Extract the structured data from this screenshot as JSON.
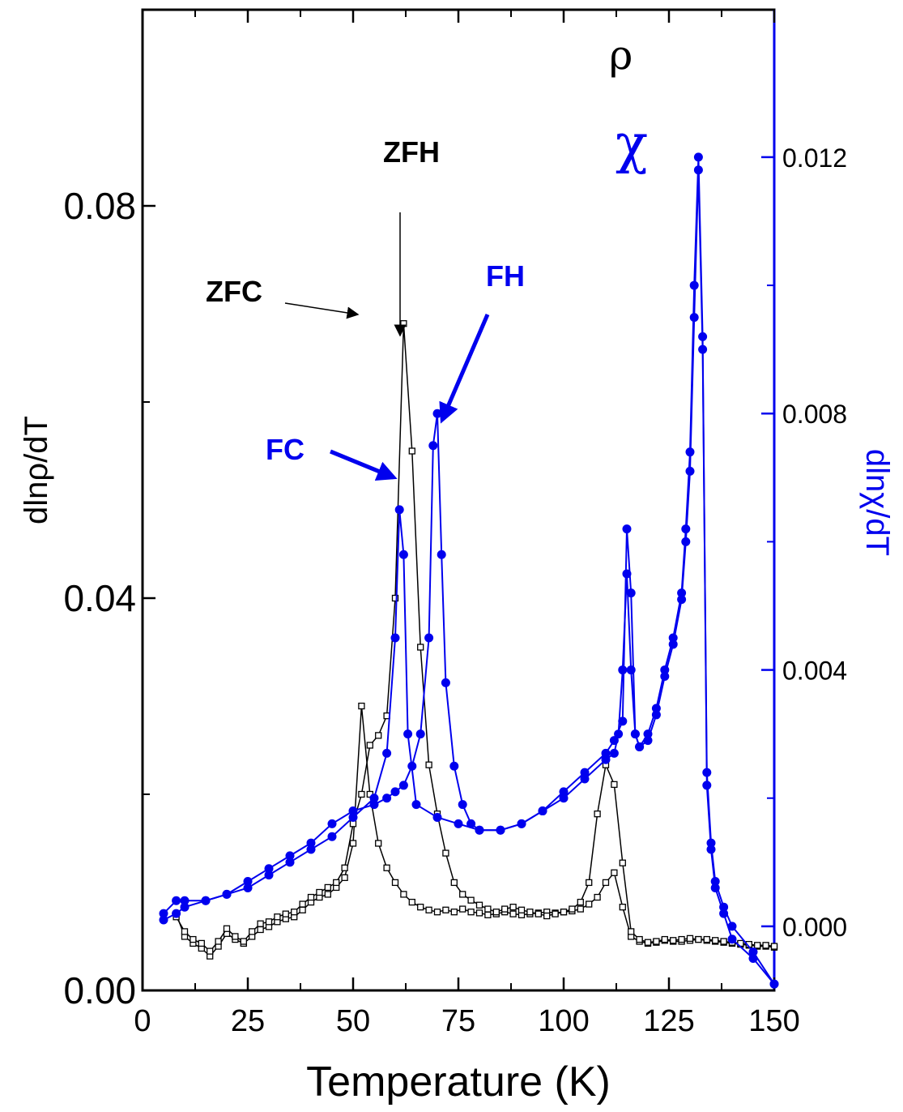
{
  "chart_data": {
    "type": "line",
    "xlabel": "Temperature (K)",
    "ylabel_left": "dlnρ/dT",
    "ylabel_right": "dlnχ/dT",
    "xlim": [
      0,
      150
    ],
    "ylim_left": [
      0,
      0.1
    ],
    "ylim_right": [
      -0.001,
      0.0143
    ],
    "x_ticks": [
      0,
      25,
      50,
      75,
      100,
      125,
      150
    ],
    "x_tick_labels": [
      "0",
      "25",
      "50",
      "75",
      "100",
      "125",
      "150"
    ],
    "y_left_ticks": [
      0,
      0.04,
      0.08
    ],
    "y_left_tick_labels": [
      "0.00",
      "0.04",
      "0.08"
    ],
    "y_right_ticks": [
      0.0,
      0.004,
      0.008,
      0.012
    ],
    "y_right_tick_labels": [
      "0.000",
      "0.004",
      "0.008",
      "0.012"
    ],
    "legend": {
      "rho": "ρ",
      "chi": "χ"
    },
    "annotations": {
      "zfc": "ZFC",
      "zfh": "ZFH",
      "fc": "FC",
      "fh": "FH"
    },
    "colors": {
      "rho": "#000000",
      "chi": "#0000ee"
    },
    "series": [
      {
        "axis": "left",
        "marker": "open-square",
        "x": [
          8,
          10,
          12,
          14,
          16,
          18,
          20,
          22,
          24,
          26,
          28,
          30,
          32,
          34,
          36,
          38,
          40,
          42,
          44,
          46,
          48,
          50,
          52,
          54,
          56,
          58,
          60,
          62,
          64,
          66,
          68,
          70,
          72,
          74,
          76,
          78,
          80,
          82,
          84,
          86,
          88,
          90,
          92,
          94,
          96,
          98,
          100,
          102,
          104,
          106,
          108,
          110,
          112,
          114,
          116,
          118,
          120,
          122,
          124,
          126,
          128,
          130,
          132,
          134,
          136,
          138,
          140,
          142,
          144,
          146,
          148,
          150
        ],
        "y": [
          0.0078,
          0.0055,
          0.0048,
          0.0043,
          0.0035,
          0.0045,
          0.0058,
          0.0052,
          0.0048,
          0.0055,
          0.0062,
          0.0065,
          0.007,
          0.0073,
          0.0075,
          0.0082,
          0.009,
          0.0095,
          0.0098,
          0.0105,
          0.0115,
          0.015,
          0.029,
          0.02,
          0.015,
          0.0125,
          0.011,
          0.0098,
          0.009,
          0.0085,
          0.0082,
          0.008,
          0.0082,
          0.008,
          0.0083,
          0.008,
          0.0079,
          0.0077,
          0.0078,
          0.008,
          0.0078,
          0.0077,
          0.0078,
          0.0079,
          0.008,
          0.0079,
          0.008,
          0.0081,
          0.0083,
          0.0088,
          0.0095,
          0.011,
          0.012,
          0.0085,
          0.0055,
          0.005,
          0.0048,
          0.0049,
          0.0051,
          0.005,
          0.005,
          0.0051,
          0.0052,
          0.0051,
          0.005,
          0.0049,
          0.0048,
          0.0047,
          0.0046,
          0.0045,
          0.0045,
          0.0044
        ]
      },
      {
        "axis": "left",
        "marker": "open-square",
        "x": [
          8,
          10,
          12,
          14,
          16,
          18,
          20,
          22,
          24,
          26,
          28,
          30,
          32,
          34,
          36,
          38,
          40,
          42,
          44,
          46,
          48,
          50,
          52,
          54,
          56,
          58,
          60,
          62,
          64,
          66,
          68,
          70,
          72,
          74,
          76,
          78,
          80,
          82,
          84,
          86,
          88,
          90,
          92,
          94,
          96,
          98,
          100,
          102,
          104,
          106,
          108,
          110,
          112,
          114,
          116,
          118,
          120,
          122,
          124,
          126,
          128,
          130,
          132,
          134,
          136,
          138,
          140,
          142,
          144,
          146,
          148,
          150
        ],
        "y": [
          0.0075,
          0.006,
          0.0052,
          0.0048,
          0.004,
          0.005,
          0.0063,
          0.0055,
          0.005,
          0.006,
          0.0068,
          0.007,
          0.0075,
          0.0078,
          0.008,
          0.0088,
          0.0095,
          0.01,
          0.0105,
          0.011,
          0.0125,
          0.017,
          0.02,
          0.025,
          0.026,
          0.028,
          0.04,
          0.068,
          0.055,
          0.035,
          0.023,
          0.018,
          0.014,
          0.011,
          0.0098,
          0.0092,
          0.0087,
          0.0083,
          0.008,
          0.0083,
          0.0085,
          0.0082,
          0.008,
          0.0078,
          0.0076,
          0.0078,
          0.008,
          0.0083,
          0.009,
          0.011,
          0.018,
          0.023,
          0.021,
          0.013,
          0.006,
          0.0052,
          0.0049,
          0.005,
          0.0052,
          0.0051,
          0.0052,
          0.0053,
          0.0052,
          0.0052,
          0.0051,
          0.005,
          0.0049,
          0.0048,
          0.0047,
          0.0046,
          0.0046,
          0.0045
        ]
      },
      {
        "axis": "right",
        "marker": "filled-circle",
        "x": [
          5,
          8,
          10,
          15,
          20,
          25,
          30,
          35,
          40,
          45,
          50,
          55,
          58,
          60,
          61,
          62,
          63,
          65,
          70,
          75,
          80,
          85,
          90,
          95,
          100,
          105,
          110,
          112,
          113,
          114,
          115,
          116,
          117,
          118,
          120,
          122,
          124,
          126,
          128,
          129,
          130,
          131,
          132,
          133,
          134,
          135,
          136,
          138,
          140,
          145,
          150
        ],
        "y": [
          0.0002,
          0.0004,
          0.0004,
          0.0004,
          0.0005,
          0.0006,
          0.0008,
          0.001,
          0.0012,
          0.0014,
          0.0017,
          0.002,
          0.0027,
          0.0045,
          0.0065,
          0.0058,
          0.003,
          0.0019,
          0.0017,
          0.0016,
          0.0015,
          0.0015,
          0.0016,
          0.0018,
          0.002,
          0.0023,
          0.0026,
          0.0027,
          0.003,
          0.004,
          0.0055,
          0.004,
          0.003,
          0.0028,
          0.003,
          0.0034,
          0.004,
          0.0045,
          0.0052,
          0.0062,
          0.0074,
          0.01,
          0.012,
          0.0092,
          0.0022,
          0.0012,
          0.0006,
          0.0002,
          -0.0002,
          -0.0005,
          -0.0009
        ]
      },
      {
        "axis": "right",
        "marker": "filled-circle",
        "x": [
          5,
          8,
          10,
          15,
          20,
          25,
          30,
          35,
          40,
          45,
          50,
          55,
          58,
          60,
          62,
          64,
          66,
          68,
          69,
          70,
          71,
          72,
          74,
          76,
          78,
          80,
          85,
          90,
          95,
          100,
          105,
          110,
          112,
          114,
          115,
          116,
          117,
          118,
          120,
          122,
          124,
          126,
          128,
          129,
          130,
          131,
          132,
          133,
          134,
          135,
          136,
          138,
          140,
          145,
          150
        ],
        "y": [
          0.0001,
          0.0002,
          0.0003,
          0.0004,
          0.0005,
          0.0007,
          0.0009,
          0.0011,
          0.0013,
          0.0016,
          0.0018,
          0.0019,
          0.002,
          0.0021,
          0.0022,
          0.0025,
          0.003,
          0.0045,
          0.0075,
          0.008,
          0.0058,
          0.0038,
          0.0025,
          0.0019,
          0.0016,
          0.0015,
          0.0015,
          0.0016,
          0.0018,
          0.0021,
          0.0024,
          0.0027,
          0.0029,
          0.0032,
          0.0062,
          0.0052,
          0.003,
          0.0028,
          0.0029,
          0.0033,
          0.0039,
          0.0044,
          0.0051,
          0.006,
          0.0071,
          0.0095,
          0.0118,
          0.009,
          0.0024,
          0.0013,
          0.0007,
          0.0003,
          0.0,
          -0.0004,
          -0.0009
        ]
      }
    ]
  }
}
